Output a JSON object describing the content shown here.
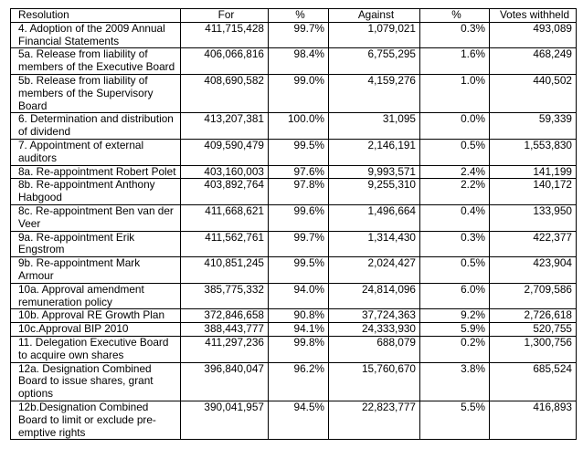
{
  "headers": [
    "Resolution",
    "For",
    "%",
    "Against",
    "%",
    "Votes withheld"
  ],
  "rows": [
    [
      "4. Adoption of the 2009 Annual Financial Statements",
      "411,715,428",
      "99.7%",
      "1,079,021",
      "0.3%",
      "493,089"
    ],
    [
      "5a. Release from liability of members of the Executive Board",
      "406,066,816",
      "98.4%",
      "6,755,295",
      "1.6%",
      "468,249"
    ],
    [
      "5b. Release from liability of members of the Supervisory Board",
      "408,690,582",
      "99.0%",
      "4,159,276",
      "1.0%",
      "440,502"
    ],
    [
      "6. Determination and distribution of dividend",
      "413,207,381",
      "100.0%",
      "31,095",
      "0.0%",
      "59,339"
    ],
    [
      "7. Appointment of external auditors",
      "409,590,479",
      "99.5%",
      "2,146,191",
      "0.5%",
      "1,553,830"
    ],
    [
      "8a. Re-appointment Robert Polet",
      "403,160,003",
      "97.6%",
      "9,993,571",
      "2.4%",
      "141,199"
    ],
    [
      "8b.  Re-appointment Anthony Habgood",
      "403,892,764",
      "97.8%",
      "9,255,310",
      "2.2%",
      "140,172"
    ],
    [
      "8c. Re-appointment Ben van der Veer",
      "411,668,621",
      "99.6%",
      "1,496,664",
      "0.4%",
      "133,950"
    ],
    [
      "9a. Re-appointment Erik Engstrom",
      "411,562,761",
      "99.7%",
      "1,314,430",
      "0.3%",
      "422,377"
    ],
    [
      "9b. Re-appointment Mark Armour",
      "410,851,245",
      "99.5%",
      "2,024,427",
      "0.5%",
      "423,904"
    ],
    [
      "10a. Approval amendment remuneration policy",
      "385,775,332",
      "94.0%",
      "24,814,096",
      "6.0%",
      "2,709,586"
    ],
    [
      "10b. Approval RE Growth Plan",
      "372,846,658",
      "90.8%",
      "37,724,363",
      "9.2%",
      "2,726,618"
    ],
    [
      "10c.Approval BIP 2010",
      "388,443,777",
      "94.1%",
      "24,333,930",
      "5.9%",
      "520,755"
    ],
    [
      "11. Delegation Executive Board to acquire own shares",
      "411,297,236",
      "99.8%",
      "688,079",
      "0.2%",
      "1,300,756"
    ],
    [
      "12a. Designation Combined Board to issue shares, grant options",
      "396,840,047",
      "96.2%",
      "15,760,670",
      "3.8%",
      "685,524"
    ],
    [
      "12b.Designation Combined Board to limit or exclude pre-emptive rights",
      "390,041,957",
      "94.5%",
      "22,823,777",
      "5.5%",
      "416,893"
    ]
  ]
}
